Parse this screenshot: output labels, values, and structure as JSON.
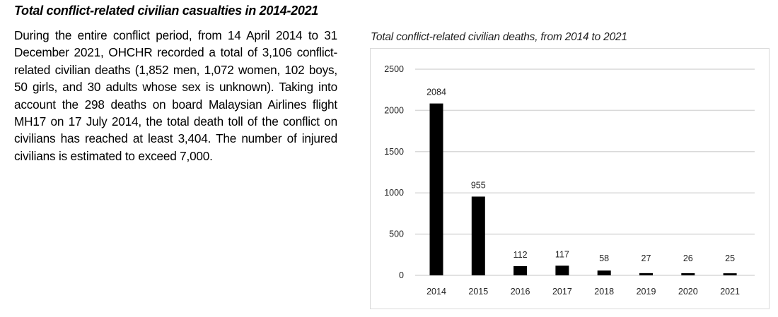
{
  "heading": "Total conflict-related civilian casualties in 2014-2021",
  "body_text": "During the entire conflict period, from 14 April 2014 to 31 December 2021, OHCHR recorded a total of 3,106 conflict-related civilian deaths (1,852 men, 1,072 women, 102 boys, 50 girls, and 30 adults whose sex is unknown). Taking into account the 298 deaths on board Malaysian Airlines flight MH17 on 17 July 2014, the total death toll of the conflict on civilians has reached at least 3,404. The number of injured civilians is estimated to exceed 7,000.",
  "chart_data": {
    "type": "bar",
    "title": "Total conflict-related civilian deaths, from 2014 to 2021",
    "categories": [
      "2014",
      "2015",
      "2016",
      "2017",
      "2018",
      "2019",
      "2020",
      "2021"
    ],
    "values": [
      2084,
      955,
      112,
      117,
      58,
      27,
      26,
      25
    ],
    "data_labels": [
      "2084",
      "955",
      "112",
      "117",
      "58",
      "27",
      "26",
      "25"
    ],
    "yticks": [
      "0",
      "500",
      "1000",
      "1500",
      "2000",
      "2500"
    ],
    "ylim": [
      0,
      2500
    ],
    "xlabel": "",
    "ylabel": "",
    "grid": true,
    "bar_color": "#000000",
    "grid_color": "#d9d9d9"
  }
}
